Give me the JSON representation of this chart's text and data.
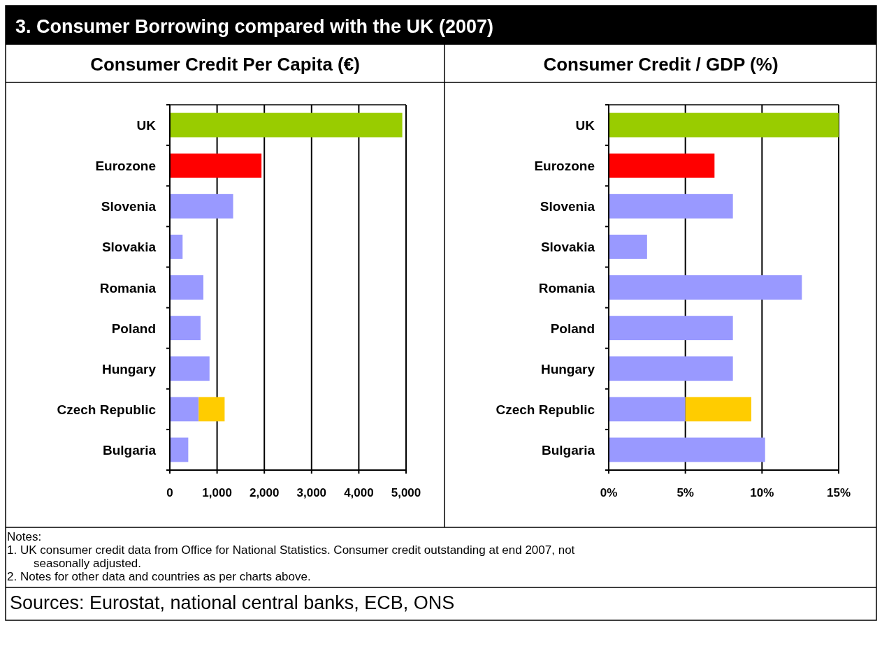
{
  "chart_data": [
    {
      "type": "other",
      "title": "3. Consumer Borrowing compared with the UK (2007)",
      "annotations": [
        "Notes:",
        "1. UK consumer credit data from Office for National Statistics.  Consumer credit outstanding at end 2007, not seasonally adjusted.",
        "2. Notes for other data and countries as per charts above.",
        "Sources: Eurostat, national central banks, ECB, ONS"
      ]
    },
    {
      "type": "bar",
      "title": "Consumer Credit Per Capita (€)",
      "orientation": "horizontal",
      "stacked": true,
      "grid": "x",
      "categories": [
        "UK",
        "Eurozone",
        "Slovenia",
        "Slovakia",
        "Romania",
        "Poland",
        "Hungary",
        "Czech Republic",
        "Bulgaria"
      ],
      "series": [
        {
          "colors": [
            "#99cc00",
            "#ff0000",
            "#9999ff",
            "#9999ff",
            "#9999ff",
            "#9999ff",
            "#9999ff",
            "#9999ff",
            "#9999ff"
          ],
          "values": [
            4920,
            1940,
            1340,
            270,
            710,
            650,
            840,
            610,
            390
          ]
        },
        {
          "color": "#ffcc00",
          "values": [
            null,
            null,
            null,
            null,
            null,
            null,
            null,
            550,
            null
          ]
        }
      ],
      "xlim": [
        0,
        5000
      ],
      "xticks": [
        0,
        {
          "value": 1000,
          "label": "1,000"
        },
        {
          "value": 2000,
          "label": "2,000"
        },
        {
          "value": 3000,
          "label": "3,000"
        },
        {
          "value": 4000,
          "label": "4,000"
        },
        {
          "value": 5000,
          "label": "5,000"
        }
      ]
    },
    {
      "type": "bar",
      "title": "Consumer Credit / GDP (%)",
      "orientation": "horizontal",
      "stacked": true,
      "grid": "x",
      "categories": [
        "UK",
        "Eurozone",
        "Slovenia",
        "Slovakia",
        "Romania",
        "Poland",
        "Hungary",
        "Czech Republic",
        "Bulgaria"
      ],
      "series": [
        {
          "colors": [
            "#99cc00",
            "#ff0000",
            "#9999ff",
            "#9999ff",
            "#9999ff",
            "#9999ff",
            "#9999ff",
            "#9999ff",
            "#9999ff"
          ],
          "values": [
            15,
            6.9,
            8.1,
            2.5,
            12.6,
            8.1,
            8.1,
            5.0,
            10.2
          ]
        },
        {
          "color": "#ffcc00",
          "values": [
            null,
            null,
            null,
            null,
            null,
            null,
            null,
            4.3,
            null
          ]
        }
      ],
      "xlim": [
        0,
        15
      ],
      "xticks": [
        {
          "value": 0,
          "label": "0%"
        },
        {
          "value": 5,
          "label": "5%"
        },
        {
          "value": 10,
          "label": "10%"
        },
        {
          "value": 15,
          "label": "15%"
        }
      ]
    }
  ]
}
